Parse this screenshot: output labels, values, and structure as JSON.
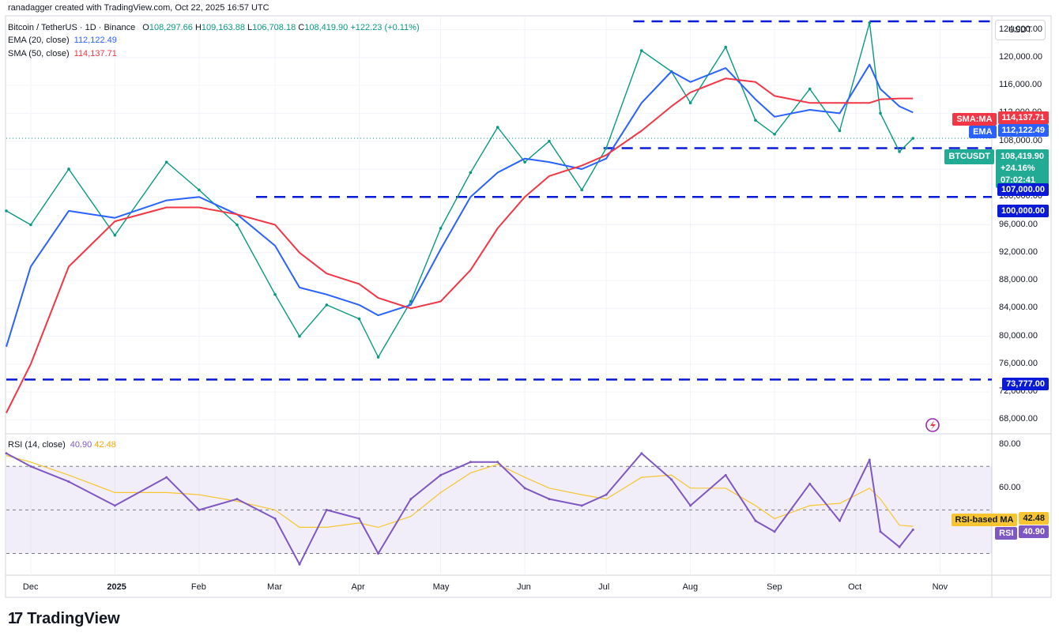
{
  "header": {
    "credit": "ranadagger created with TradingView.com, Oct 22, 2025 16:57 UTC",
    "symbol": "Bitcoin / TetherUS · 1D · Binance",
    "ohlc": {
      "o_label": "O",
      "o": "108,297.66",
      "h_label": "H",
      "h": "109,163.88",
      "l_label": "L",
      "l": "106,708.18",
      "c_label": "C",
      "c": "108,419.90",
      "change": "+122.23 (+0.11%)"
    },
    "ema_label": "EMA (20, close)",
    "ema_value": "112,122.49",
    "sma_label": "SMA (50, close)",
    "sma_value": "114,137.71",
    "rsi_label": "RSI (14, close)",
    "rsi_value": "40.90",
    "rsi_ma_value": "42.48"
  },
  "currency": "USDT",
  "price_axis": [
    "124,000.00",
    "120,000.00",
    "116,000.00",
    "112,000.00",
    "108,000.00",
    "104,000.00",
    "100,000.00",
    "96,000.00",
    "92,000.00",
    "88,000.00",
    "84,000.00",
    "80,000.00",
    "76,000.00",
    "72,000.00",
    "68,000.00"
  ],
  "rsi_axis": [
    "80.00",
    "60.00"
  ],
  "time_axis": [
    "Dec",
    "2025",
    "Feb",
    "Mar",
    "Apr",
    "May",
    "Jun",
    "Jul",
    "Aug",
    "Sep",
    "Oct",
    "Nov"
  ],
  "tags": {
    "sma": {
      "label": "SMA:MA",
      "value": "114,137.71",
      "color": "#f23645"
    },
    "ema": {
      "label": "EMA",
      "value": "112,122.49",
      "color": "#2962ff"
    },
    "last": {
      "label": "BTCUSDT",
      "value": "108,419.90",
      "change": "+24.16%",
      "timer": "07:02:41",
      "color": "#22ab94"
    },
    "lvl107": {
      "value": "107,000.00",
      "color": "#0a1bd8"
    },
    "lvl100": {
      "value": "100,000.00",
      "color": "#0a1bd8"
    },
    "lvl73": {
      "value": "73,777.00",
      "color": "#0a1bd8"
    },
    "rsi_ma": {
      "label": "RSI-based MA",
      "value": "42.48",
      "color": "#f7c531"
    },
    "rsi": {
      "label": "RSI",
      "value": "40.90",
      "color": "#7e57c2"
    }
  },
  "logo": {
    "mark": "17",
    "text": "TradingView"
  },
  "chart_data": {
    "type": "line",
    "x": [
      "2024-11-22",
      "2024-12-01",
      "2024-12-15",
      "2025-01-01",
      "2025-01-20",
      "2025-02-01",
      "2025-02-15",
      "2025-03-01",
      "2025-03-10",
      "2025-03-20",
      "2025-04-01",
      "2025-04-08",
      "2025-04-20",
      "2025-05-01",
      "2025-05-12",
      "2025-05-22",
      "2025-06-01",
      "2025-06-10",
      "2025-06-22",
      "2025-07-01",
      "2025-07-14",
      "2025-07-25",
      "2025-08-01",
      "2025-08-14",
      "2025-08-25",
      "2025-09-01",
      "2025-09-14",
      "2025-09-25",
      "2025-10-06",
      "2025-10-10",
      "2025-10-17",
      "2025-10-22"
    ],
    "series": [
      {
        "name": "BTCUSDT",
        "values": [
          98000,
          96000,
          104000,
          94500,
          105000,
          101000,
          96000,
          86000,
          80000,
          84500,
          82500,
          77000,
          85000,
          95500,
          103500,
          110000,
          105000,
          108000,
          101000,
          107000,
          121000,
          118000,
          113500,
          121500,
          111000,
          109000,
          115500,
          109500,
          125000,
          112000,
          106500,
          108419.9
        ]
      },
      {
        "name": "EMA (20, close)",
        "values": [
          78500,
          90000,
          98000,
          97000,
          99500,
          100000,
          97500,
          93000,
          87000,
          86000,
          84500,
          83000,
          84500,
          92500,
          100000,
          103500,
          105500,
          105000,
          104000,
          105500,
          113500,
          118000,
          116500,
          118500,
          114000,
          111500,
          112500,
          112000,
          119000,
          115500,
          113000,
          112122.49
        ]
      },
      {
        "name": "SMA (50, close)",
        "values": [
          69000,
          76000,
          90000,
          96500,
          98500,
          98500,
          97500,
          96000,
          92000,
          89000,
          87500,
          85500,
          84000,
          85000,
          89500,
          95500,
          100000,
          103000,
          104500,
          106000,
          109500,
          113000,
          115000,
          117000,
          116500,
          114500,
          113500,
          113500,
          113500,
          114000,
          114137,
          114137.71
        ]
      }
    ],
    "levels": [
      107000,
      100000,
      73777
    ],
    "ylim": [
      66000,
      126000
    ],
    "rsi": {
      "name": "RSI (14, close)",
      "values": [
        76,
        70,
        63,
        52,
        65,
        50,
        55,
        46,
        25,
        50,
        46,
        30,
        55,
        66,
        72,
        72,
        60,
        55,
        52,
        57,
        76,
        64,
        52,
        66,
        45,
        40,
        62,
        45,
        73,
        40,
        33,
        40.9
      ],
      "ma_name": "RSI-based MA",
      "ma_values": [
        75,
        72,
        66,
        58,
        58,
        57,
        54,
        50,
        42,
        42,
        44,
        42,
        47,
        58,
        67,
        71,
        65,
        60,
        57,
        55,
        65,
        66,
        60,
        60,
        52,
        46,
        52,
        53,
        60,
        55,
        43,
        42.48
      ],
      "ylim": [
        20,
        85
      ],
      "bands": [
        70,
        30
      ]
    }
  }
}
